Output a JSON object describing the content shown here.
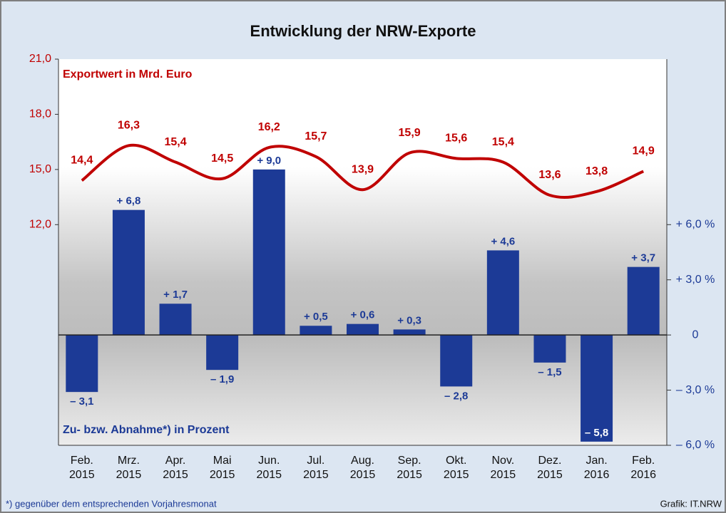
{
  "chart_data": {
    "type": "bar-line",
    "title": "Entwicklung der NRW-Exporte",
    "categories": [
      [
        "Feb.",
        "2015"
      ],
      [
        "Mrz.",
        "2015"
      ],
      [
        "Apr.",
        "2015"
      ],
      [
        "Mai",
        "2015"
      ],
      [
        "Jun.",
        "2015"
      ],
      [
        "Jul.",
        "2015"
      ],
      [
        "Aug.",
        "2015"
      ],
      [
        "Sep.",
        "2015"
      ],
      [
        "Okt.",
        "2015"
      ],
      [
        "Nov.",
        "2015"
      ],
      [
        "Dez.",
        "2015"
      ],
      [
        "Jan.",
        "2016"
      ],
      [
        "Feb.",
        "2016"
      ]
    ],
    "series": [
      {
        "name": "Exportwert in Mrd. Euro",
        "type": "line",
        "color": "#c00000",
        "values": [
          14.4,
          16.3,
          15.4,
          14.5,
          16.2,
          15.7,
          13.9,
          15.9,
          15.6,
          15.4,
          13.6,
          13.8,
          14.9
        ],
        "value_labels": [
          "14,4",
          "16,3",
          "15,4",
          "14,5",
          "16,2",
          "15,7",
          "13,9",
          "15,9",
          "15,6",
          "15,4",
          "13,6",
          "13,8",
          "14,9"
        ]
      },
      {
        "name": "Zu- bzw. Abnahme*) in Prozent",
        "type": "bar",
        "axis": "y2",
        "color": "#1c3a96",
        "values": [
          -3.1,
          6.8,
          1.7,
          -1.9,
          9.0,
          0.5,
          0.6,
          0.3,
          -2.8,
          4.6,
          -1.5,
          -5.8,
          3.7
        ],
        "value_labels": [
          "– 3,1",
          "+ 6,8",
          "+ 1,7",
          "– 1,9",
          "+ 9,0",
          "+ 0,5",
          "+ 0,6",
          "+ 0,3",
          "– 2,8",
          "+ 4,6",
          "– 1,5",
          "– 5,8",
          "+ 3,7"
        ]
      }
    ],
    "ylim": [
      0,
      21
    ],
    "yticks": [
      {
        "value": 12,
        "label": "12,0"
      },
      {
        "value": 15,
        "label": "15,0"
      },
      {
        "value": 18,
        "label": "18,0"
      },
      {
        "value": 21,
        "label": "21,0"
      }
    ],
    "y2lim": [
      -6,
      15
    ],
    "y2ticks": [
      {
        "value": -6,
        "label": "– 6,0 %"
      },
      {
        "value": -3,
        "label": "– 3,0 %"
      },
      0,
      {
        "value": 3,
        "label": "+ 3,0 %"
      },
      {
        "value": 6,
        "label": "+ 6,0 %"
      }
    ],
    "footnote": "*) gegenüber dem entsprechenden Vorjahresmonat",
    "source": "Grafik: IT.NRW"
  }
}
